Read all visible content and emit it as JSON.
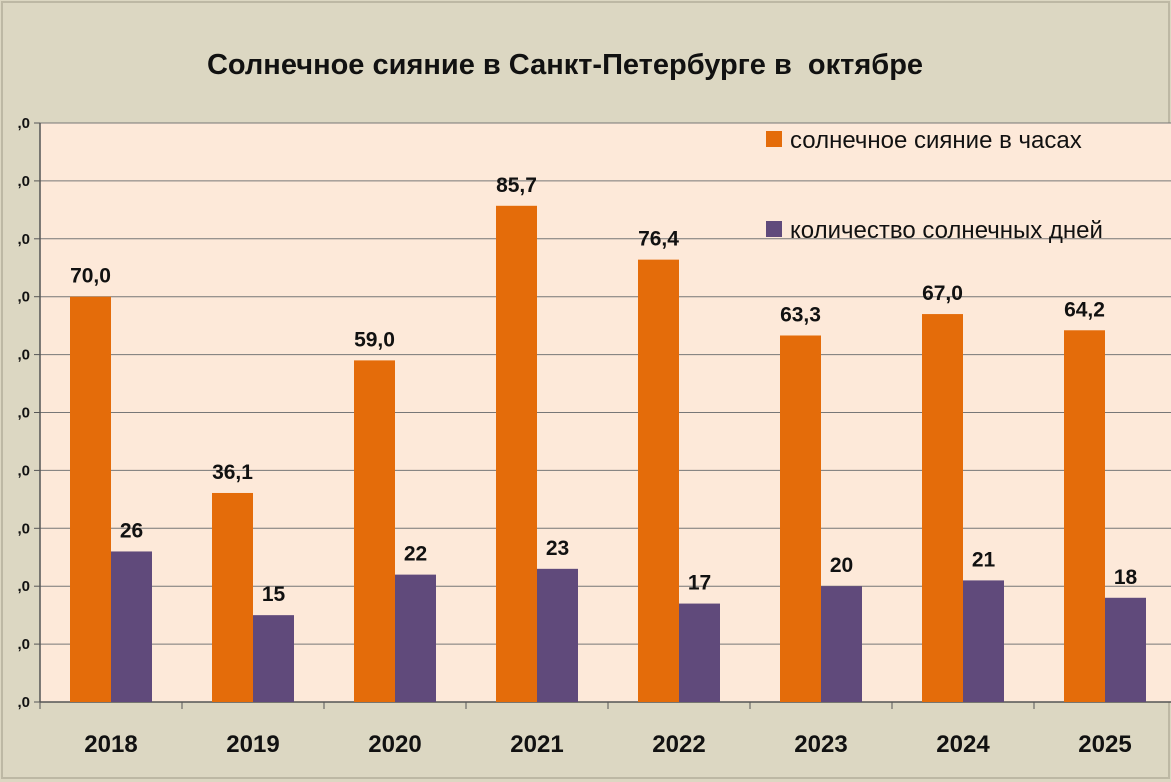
{
  "chart_data": {
    "type": "bar",
    "title": "Солнечное сияние в Санкт-Петербурге в  октябре",
    "categories": [
      "2018",
      "2019",
      "2020",
      "2021",
      "2022",
      "2023",
      "2024",
      "2025"
    ],
    "series": [
      {
        "name": "солнечное сияние в часах",
        "color": "#e46c0a",
        "values": [
          70.0,
          36.1,
          59.0,
          85.7,
          76.4,
          63.3,
          67.0,
          64.2
        ],
        "labels": [
          "70,0",
          "36,1",
          "59,0",
          "85,7",
          "76,4",
          "63,3",
          "67,0",
          "64,2"
        ]
      },
      {
        "name": "количество солнечных дней",
        "color": "#604a7b",
        "values": [
          26,
          15,
          22,
          23,
          17,
          20,
          21,
          18
        ],
        "labels": [
          "26",
          "15",
          "22",
          "23",
          "17",
          "20",
          "21",
          "18"
        ]
      }
    ],
    "ylim": [
      0,
      100
    ],
    "yticks": [
      0,
      10,
      20,
      30,
      40,
      50,
      60,
      70,
      80,
      90,
      100
    ],
    "ytick_labels": [
      ",0",
      ",0",
      ",0",
      ",0",
      ",0",
      ",0",
      ",0",
      ",0",
      ",0",
      ",0",
      ",0"
    ],
    "grid": true,
    "legend_position": "top-right",
    "plot_background": "#fde9d9"
  }
}
